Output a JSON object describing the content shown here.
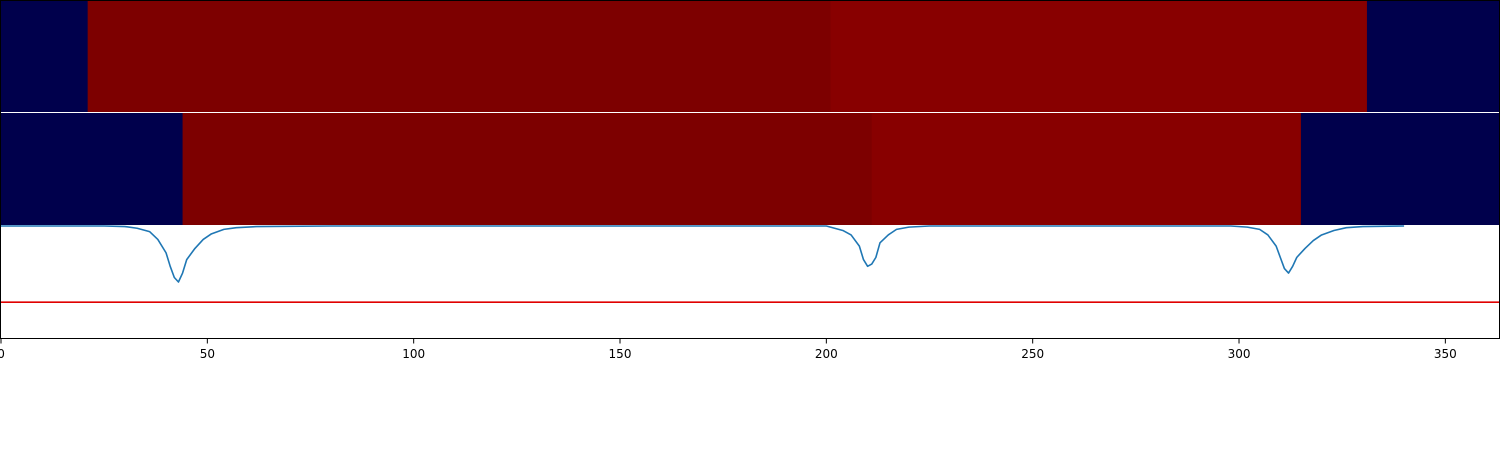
{
  "chart_data": [
    {
      "type": "heatmap",
      "panel": "top",
      "x_range": [
        0,
        363
      ],
      "segments": [
        {
          "x0": 0,
          "x1": 21,
          "color": "#00004c"
        },
        {
          "x0": 21,
          "x1": 201,
          "color": "#7d0000"
        },
        {
          "x0": 201,
          "x1": 331,
          "color": "#880000"
        },
        {
          "x0": 331,
          "x1": 363,
          "color": "#00004c"
        }
      ]
    },
    {
      "type": "heatmap",
      "panel": "middle",
      "x_range": [
        0,
        363
      ],
      "segments": [
        {
          "x0": 0,
          "x1": 44,
          "color": "#00004c"
        },
        {
          "x0": 44,
          "x1": 211,
          "color": "#7d0000"
        },
        {
          "x0": 211,
          "x1": 315,
          "color": "#880000"
        },
        {
          "x0": 315,
          "x1": 363,
          "color": "#00004c"
        }
      ]
    },
    {
      "type": "line",
      "panel": "bottom",
      "xlim": [
        0,
        363
      ],
      "ylim": [
        0,
        1
      ],
      "series": [
        {
          "color": "#1f77b4",
          "points": [
            [
              0,
              1.0
            ],
            [
              25,
              1.0
            ],
            [
              30,
              0.995
            ],
            [
              33,
              0.98
            ],
            [
              36,
              0.95
            ],
            [
              38,
              0.88
            ],
            [
              40,
              0.76
            ],
            [
              41,
              0.64
            ],
            [
              42,
              0.54
            ],
            [
              43,
              0.5
            ],
            [
              44,
              0.58
            ],
            [
              45,
              0.7
            ],
            [
              47,
              0.8
            ],
            [
              49,
              0.88
            ],
            [
              51,
              0.93
            ],
            [
              54,
              0.97
            ],
            [
              57,
              0.985
            ],
            [
              62,
              0.995
            ],
            [
              80,
              1.0
            ],
            [
              200,
              1.0
            ],
            [
              202,
              0.98
            ],
            [
              204,
              0.96
            ],
            [
              206,
              0.92
            ],
            [
              208,
              0.82
            ],
            [
              209,
              0.7
            ],
            [
              210,
              0.64
            ],
            [
              211,
              0.66
            ],
            [
              212,
              0.72
            ],
            [
              213,
              0.85
            ],
            [
              215,
              0.92
            ],
            [
              217,
              0.97
            ],
            [
              220,
              0.99
            ],
            [
              225,
              1.0
            ],
            [
              298,
              1.0
            ],
            [
              302,
              0.99
            ],
            [
              305,
              0.97
            ],
            [
              307,
              0.92
            ],
            [
              309,
              0.82
            ],
            [
              310,
              0.72
            ],
            [
              311,
              0.62
            ],
            [
              312,
              0.58
            ],
            [
              313,
              0.64
            ],
            [
              314,
              0.72
            ],
            [
              316,
              0.8
            ],
            [
              318,
              0.87
            ],
            [
              320,
              0.92
            ],
            [
              323,
              0.96
            ],
            [
              326,
              0.985
            ],
            [
              330,
              0.995
            ],
            [
              340,
              1.0
            ]
          ]
        },
        {
          "color": "#e00000",
          "points": [
            [
              0,
              0.32
            ],
            [
              363,
              0.32
            ]
          ]
        }
      ],
      "xticks": [
        0,
        50,
        100,
        150,
        200,
        250,
        300,
        350
      ],
      "xtick_labels": [
        "0",
        "50",
        "100",
        "150",
        "200",
        "250",
        "300",
        "350"
      ]
    }
  ]
}
